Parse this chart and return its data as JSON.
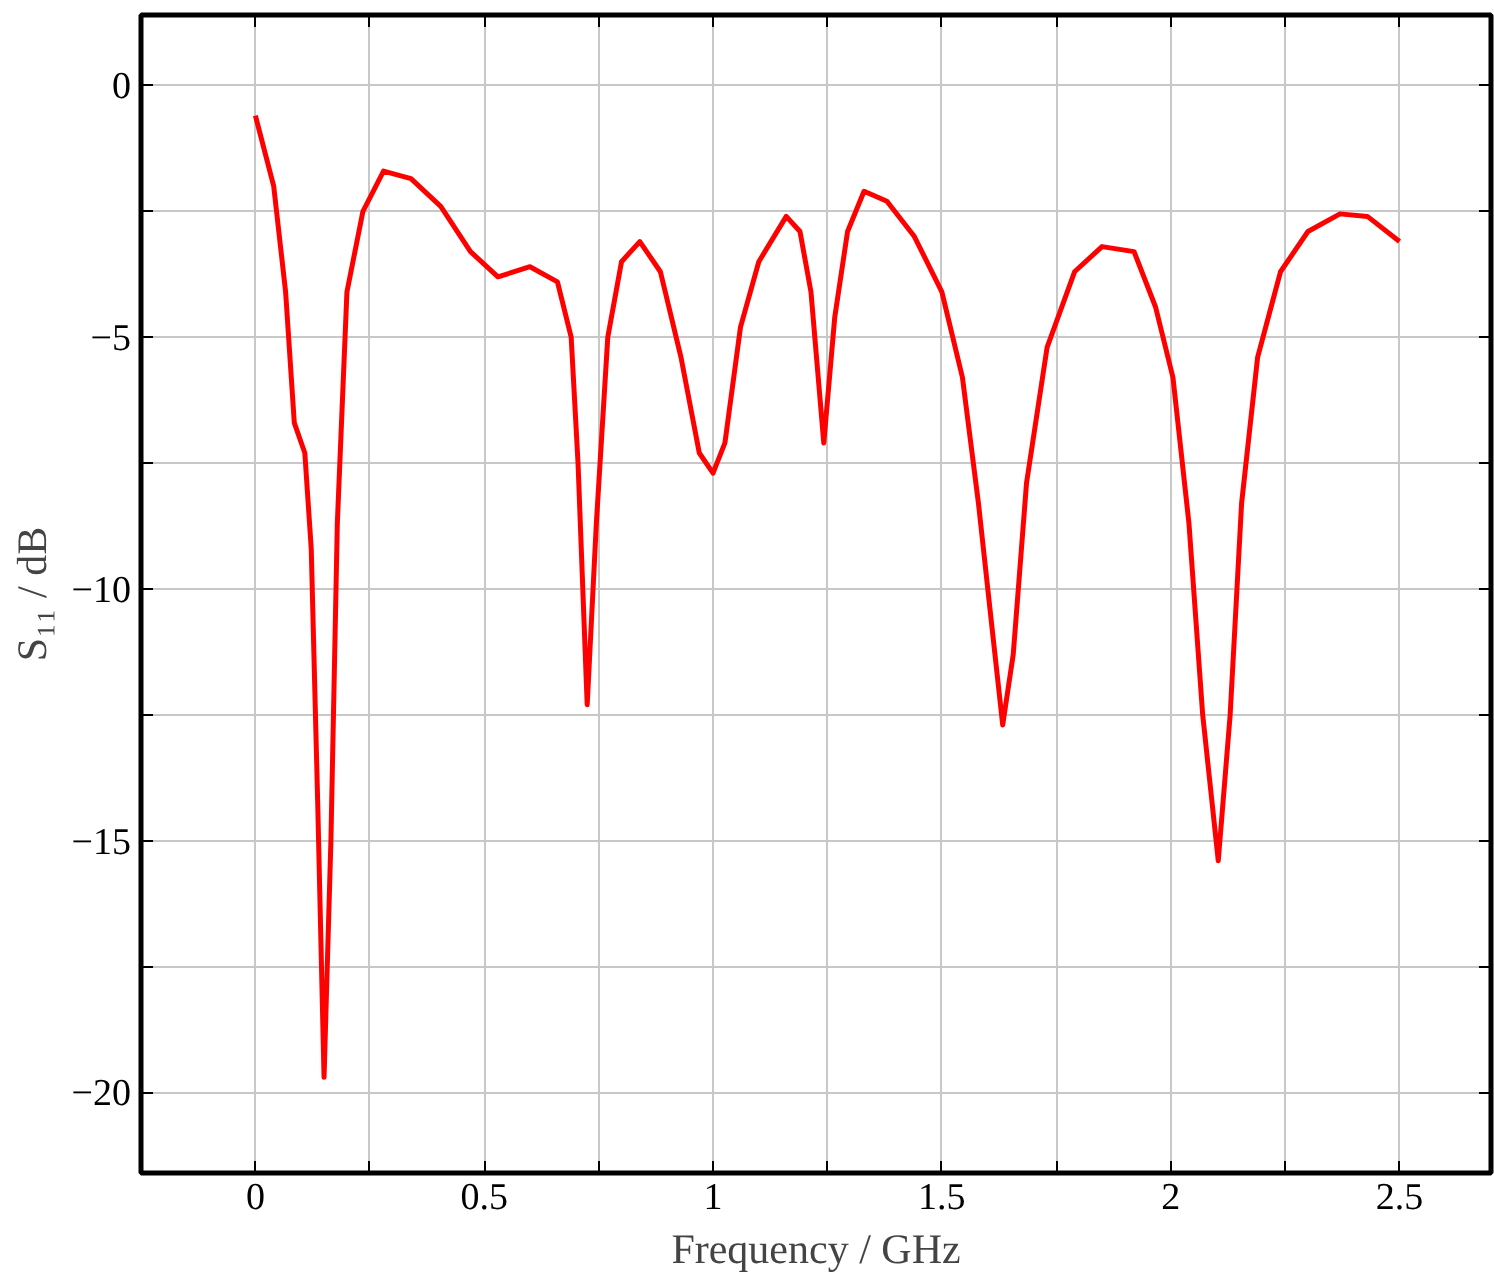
{
  "chart_data": {
    "type": "line",
    "xlabel": "Frequency / GHz",
    "ylabel": "S₁₁ / dB",
    "x": [
      0,
      0.04,
      0.066,
      0.085,
      0.108,
      0.122,
      0.136,
      0.15,
      0.165,
      0.179,
      0.2,
      0.235,
      0.28,
      0.34,
      0.405,
      0.47,
      0.53,
      0.6,
      0.66,
      0.69,
      0.705,
      0.725,
      0.745,
      0.77,
      0.8,
      0.84,
      0.885,
      0.93,
      0.97,
      1.0,
      1.026,
      1.06,
      1.1,
      1.16,
      1.19,
      1.214,
      1.242,
      1.266,
      1.294,
      1.33,
      1.38,
      1.44,
      1.5,
      1.545,
      1.58,
      1.61,
      1.633,
      1.656,
      1.685,
      1.73,
      1.79,
      1.85,
      1.92,
      1.967,
      2.005,
      2.04,
      2.07,
      2.104,
      2.13,
      2.155,
      2.19,
      2.24,
      2.3,
      2.37,
      2.43,
      2.5
    ],
    "series": [
      {
        "color": "#ff0000",
        "values": [
          -0.6,
          -2.0,
          -4.1,
          -6.7,
          -7.3,
          -9.2,
          -14.2,
          -19.7,
          -15.0,
          -8.7,
          -4.1,
          -2.5,
          -1.7,
          -1.85,
          -2.4,
          -3.3,
          -3.8,
          -3.6,
          -3.9,
          -5.0,
          -7.5,
          -12.3,
          -8.7,
          -5.0,
          -3.5,
          -3.1,
          -3.7,
          -5.4,
          -7.3,
          -7.7,
          -7.1,
          -4.8,
          -3.5,
          -2.6,
          -2.9,
          -4.1,
          -7.1,
          -4.6,
          -2.9,
          -2.1,
          -2.3,
          -3.0,
          -4.1,
          -5.8,
          -8.3,
          -10.8,
          -12.7,
          -11.3,
          -7.9,
          -5.2,
          -3.7,
          -3.2,
          -3.3,
          -4.4,
          -5.8,
          -8.7,
          -12.5,
          -15.4,
          -12.5,
          -8.3,
          -5.4,
          -3.7,
          -2.9,
          -2.55,
          -2.6,
          -3.1
        ]
      }
    ],
    "xlim": [
      -0.25,
      2.7
    ],
    "ylim": [
      -21.6,
      1.4
    ],
    "xticks": [
      {
        "value": -0.25,
        "label": null
      },
      0,
      {
        "value": 0.25,
        "label": null
      },
      0.5,
      {
        "value": 0.75,
        "label": null
      },
      1,
      {
        "value": 1.25,
        "label": null
      },
      1.5,
      {
        "value": 1.75,
        "label": null
      },
      2,
      {
        "value": 2.25,
        "label": null
      },
      2.5
    ],
    "yticks": [
      {
        "value": -20,
        "label": "−20"
      },
      {
        "value": -17.5,
        "label": null
      },
      {
        "value": -15,
        "label": "−15"
      },
      {
        "value": -12.5,
        "label": null
      },
      {
        "value": -10,
        "label": "−10"
      },
      {
        "value": -7.5,
        "label": null
      },
      {
        "value": -5,
        "label": "−5"
      },
      {
        "value": -2.5,
        "label": null
      },
      0
    ],
    "grid": true,
    "marker": "none",
    "line_style": "solid"
  }
}
